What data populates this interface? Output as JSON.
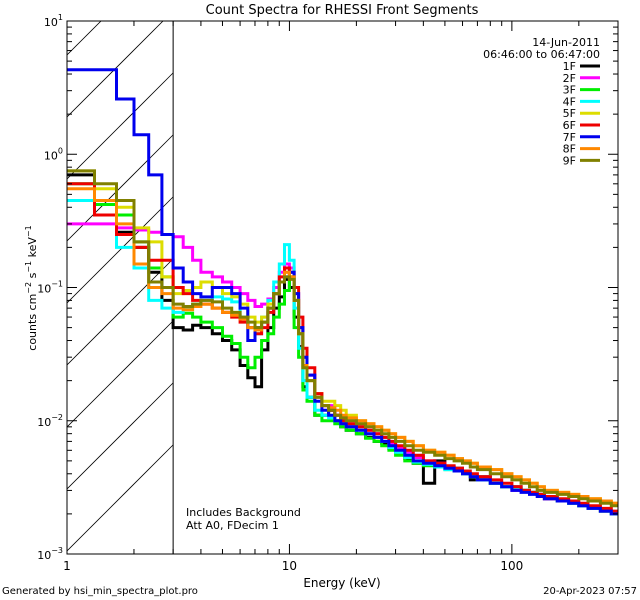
{
  "chart_data": {
    "type": "line",
    "title": "Count Spectra for RHESSI Front Segments",
    "xlabel": "Energy (keV)",
    "ylabel_parts": {
      "a": "counts cm",
      "a_exp": "−2",
      "b": " s",
      "b_exp": "−1",
      "c": " keV",
      "c_exp": "−1"
    },
    "xscale": "log",
    "yscale": "log",
    "xlim": [
      1,
      300
    ],
    "ylim": [
      0.001,
      10
    ],
    "x_tick_labels": [
      {
        "value": 1,
        "label": "1"
      },
      {
        "value": 10,
        "label": "10"
      },
      {
        "value": 100,
        "label": "100"
      }
    ],
    "y_tick_labels": [
      {
        "value": 10,
        "base": "10",
        "exp": "1"
      },
      {
        "value": 1,
        "base": "10",
        "exp": "0"
      },
      {
        "value": 0.1,
        "base": "10",
        "exp": "−1"
      },
      {
        "value": 0.01,
        "base": "10",
        "exp": "−2"
      },
      {
        "value": 0.001,
        "base": "10",
        "exp": "−3"
      }
    ],
    "date": "14-Jun-2011",
    "time_range": "06:46:00 to 06:47:00",
    "annotations": [
      "Includes Background",
      "Att A0, FDecim 1"
    ],
    "shaded_region": {
      "x_min": 1,
      "x_max": 3
    },
    "legend_position": "top-right",
    "energy_bins": [
      1.0,
      1.33,
      1.67,
      2.0,
      2.33,
      2.67,
      3.0,
      3.33,
      3.67,
      4.0,
      4.5,
      5.0,
      5.5,
      6.0,
      6.5,
      7.0,
      7.5,
      8.0,
      8.5,
      9.0,
      9.5,
      10.0,
      10.5,
      11.0,
      11.5,
      12.0,
      13,
      14,
      15,
      16,
      17,
      18,
      20,
      22,
      24,
      26,
      28,
      30,
      33,
      36,
      40,
      45,
      50,
      55,
      60,
      65,
      70,
      80,
      90,
      100,
      110,
      120,
      130,
      140,
      160,
      180,
      200,
      220,
      250,
      280,
      300
    ],
    "series": [
      {
        "name": "1F",
        "color": "#000000",
        "values": [
          0.7,
          0.42,
          0.26,
          0.2,
          0.13,
          0.08,
          0.05,
          0.048,
          0.052,
          0.05,
          0.045,
          0.04,
          0.034,
          0.026,
          0.021,
          0.018,
          0.034,
          0.05,
          0.07,
          0.085,
          0.115,
          0.1,
          0.06,
          0.036,
          0.018,
          0.015,
          0.011,
          0.011,
          0.012,
          0.01,
          0.009,
          0.0085,
          0.008,
          0.0075,
          0.007,
          0.0068,
          0.0062,
          0.0058,
          0.0052,
          0.0048,
          0.0034,
          0.005,
          0.0045,
          0.0044,
          0.004,
          0.0036,
          0.0038,
          0.0034,
          0.0032,
          0.0032,
          0.003,
          0.0029,
          0.0028,
          0.0026,
          0.0025,
          0.0024,
          0.0023,
          0.0022,
          0.0021,
          0.002
        ]
      },
      {
        "name": "2F",
        "color": "#ff00ff",
        "values": [
          0.3,
          0.3,
          0.28,
          0.27,
          0.26,
          0.25,
          0.24,
          0.2,
          0.16,
          0.13,
          0.12,
          0.11,
          0.1,
          0.09,
          0.08,
          0.072,
          0.075,
          0.082,
          0.1,
          0.13,
          0.15,
          0.14,
          0.09,
          0.05,
          0.03,
          0.022,
          0.015,
          0.013,
          0.013,
          0.011,
          0.01,
          0.0095,
          0.009,
          0.0085,
          0.008,
          0.0075,
          0.0068,
          0.0063,
          0.0058,
          0.0053,
          0.005,
          0.0048,
          0.0045,
          0.0043,
          0.004,
          0.0038,
          0.0036,
          0.0034,
          0.0032,
          0.003,
          0.003,
          0.0029,
          0.0028,
          0.0026,
          0.0025,
          0.0024,
          0.0023,
          0.0022,
          0.0021,
          0.002
        ]
      },
      {
        "name": "3F",
        "color": "#00ee00",
        "values": [
          0.6,
          0.42,
          0.35,
          0.22,
          0.14,
          0.12,
          0.06,
          0.064,
          0.06,
          0.055,
          0.05,
          0.043,
          0.038,
          0.03,
          0.025,
          0.03,
          0.04,
          0.045,
          0.06,
          0.075,
          0.095,
          0.12,
          0.05,
          0.03,
          0.017,
          0.014,
          0.011,
          0.01,
          0.01,
          0.0095,
          0.009,
          0.0085,
          0.008,
          0.0074,
          0.007,
          0.0065,
          0.006,
          0.0055,
          0.005,
          0.0048,
          0.0046,
          0.0045,
          0.0043,
          0.0042,
          0.004,
          0.0038,
          0.0036,
          0.0034,
          0.0032,
          0.0031,
          0.003,
          0.0029,
          0.0028,
          0.0027,
          0.0025,
          0.0024,
          0.0023,
          0.0022,
          0.0021,
          0.002
        ]
      },
      {
        "name": "4F",
        "color": "#00ffff",
        "values": [
          0.45,
          0.35,
          0.2,
          0.14,
          0.08,
          0.07,
          0.065,
          0.07,
          0.075,
          0.08,
          0.085,
          0.082,
          0.078,
          0.06,
          0.05,
          0.045,
          0.06,
          0.08,
          0.11,
          0.15,
          0.21,
          0.16,
          0.07,
          0.035,
          0.02,
          0.015,
          0.012,
          0.011,
          0.0105,
          0.01,
          0.0095,
          0.009,
          0.0085,
          0.008,
          0.0075,
          0.007,
          0.0063,
          0.0058,
          0.0053,
          0.0049,
          0.0047,
          0.0045,
          0.0043,
          0.0042,
          0.004,
          0.0038,
          0.0036,
          0.0034,
          0.0032,
          0.0031,
          0.003,
          0.0029,
          0.0028,
          0.0027,
          0.0025,
          0.0024,
          0.0023,
          0.0022,
          0.0021,
          0.002
        ]
      },
      {
        "name": "5F",
        "color": "#dddd00",
        "values": [
          0.75,
          0.55,
          0.4,
          0.28,
          0.22,
          0.12,
          0.09,
          0.095,
          0.1,
          0.11,
          0.1,
          0.09,
          0.085,
          0.075,
          0.06,
          0.055,
          0.06,
          0.075,
          0.09,
          0.11,
          0.13,
          0.12,
          0.08,
          0.045,
          0.025,
          0.02,
          0.016,
          0.014,
          0.014,
          0.013,
          0.012,
          0.011,
          0.01,
          0.0095,
          0.009,
          0.0085,
          0.008,
          0.0075,
          0.007,
          0.0065,
          0.006,
          0.0058,
          0.0055,
          0.0052,
          0.005,
          0.0048,
          0.0045,
          0.0043,
          0.004,
          0.0038,
          0.0036,
          0.0034,
          0.0032,
          0.003,
          0.0029,
          0.0028,
          0.0027,
          0.0026,
          0.0025,
          0.0024
        ]
      },
      {
        "name": "6F",
        "color": "#ee0000",
        "values": [
          0.6,
          0.35,
          0.25,
          0.2,
          0.16,
          0.16,
          0.1,
          0.09,
          0.08,
          0.075,
          0.07,
          0.065,
          0.06,
          0.055,
          0.05,
          0.045,
          0.05,
          0.065,
          0.09,
          0.12,
          0.14,
          0.13,
          0.1,
          0.06,
          0.035,
          0.025,
          0.016,
          0.013,
          0.012,
          0.011,
          0.01,
          0.0095,
          0.009,
          0.0085,
          0.008,
          0.0075,
          0.007,
          0.0065,
          0.006,
          0.0055,
          0.005,
          0.0048,
          0.0046,
          0.0044,
          0.0042,
          0.004,
          0.0038,
          0.0036,
          0.0034,
          0.0032,
          0.003,
          0.0029,
          0.0028,
          0.0027,
          0.0026,
          0.0025,
          0.0024,
          0.0023,
          0.0022,
          0.0021
        ]
      },
      {
        "name": "7F",
        "color": "#0000ee",
        "values": [
          4.3,
          4.3,
          2.6,
          1.4,
          0.7,
          0.25,
          0.14,
          0.11,
          0.09,
          0.085,
          0.1,
          0.1,
          0.09,
          0.07,
          0.04,
          0.05,
          0.055,
          0.07,
          0.09,
          0.11,
          0.12,
          0.13,
          0.09,
          0.05,
          0.03,
          0.022,
          0.014,
          0.012,
          0.011,
          0.01,
          0.0095,
          0.009,
          0.0085,
          0.008,
          0.0075,
          0.007,
          0.0065,
          0.006,
          0.0055,
          0.005,
          0.0048,
          0.0046,
          0.0044,
          0.0042,
          0.004,
          0.0038,
          0.0036,
          0.0034,
          0.0032,
          0.003,
          0.0029,
          0.0028,
          0.0027,
          0.0026,
          0.0025,
          0.0024,
          0.0023,
          0.0022,
          0.0021,
          0.002
        ]
      },
      {
        "name": "8F",
        "color": "#ff8800",
        "values": [
          0.55,
          0.45,
          0.3,
          0.15,
          0.1,
          0.09,
          0.07,
          0.068,
          0.072,
          0.075,
          0.07,
          0.065,
          0.062,
          0.058,
          0.05,
          0.048,
          0.055,
          0.07,
          0.09,
          0.11,
          0.13,
          0.12,
          0.08,
          0.045,
          0.026,
          0.02,
          0.015,
          0.013,
          0.0125,
          0.012,
          0.011,
          0.0105,
          0.01,
          0.0095,
          0.009,
          0.0085,
          0.008,
          0.0075,
          0.007,
          0.0065,
          0.006,
          0.0058,
          0.0055,
          0.0052,
          0.005,
          0.0048,
          0.0045,
          0.0043,
          0.004,
          0.0038,
          0.0036,
          0.0034,
          0.0032,
          0.003,
          0.0029,
          0.0028,
          0.0027,
          0.0026,
          0.0025,
          0.0024
        ]
      },
      {
        "name": "9F",
        "color": "#808000",
        "values": [
          0.75,
          0.6,
          0.45,
          0.22,
          0.11,
          0.1,
          0.075,
          0.072,
          0.075,
          0.08,
          0.078,
          0.07,
          0.065,
          0.06,
          0.055,
          0.05,
          0.055,
          0.07,
          0.09,
          0.11,
          0.12,
          0.115,
          0.08,
          0.045,
          0.025,
          0.02,
          0.015,
          0.013,
          0.012,
          0.011,
          0.0105,
          0.01,
          0.0095,
          0.009,
          0.0085,
          0.008,
          0.0075,
          0.007,
          0.0065,
          0.006,
          0.0058,
          0.0055,
          0.0052,
          0.005,
          0.0048,
          0.0045,
          0.0043,
          0.004,
          0.0038,
          0.0036,
          0.0034,
          0.0032,
          0.003,
          0.0029,
          0.0028,
          0.0027,
          0.0026,
          0.0025,
          0.0024,
          0.0023
        ]
      }
    ]
  },
  "footer": {
    "generated_by": "Generated by hsi_min_spectra_plot.pro",
    "generated_on": "20-Apr-2023 07:57"
  }
}
